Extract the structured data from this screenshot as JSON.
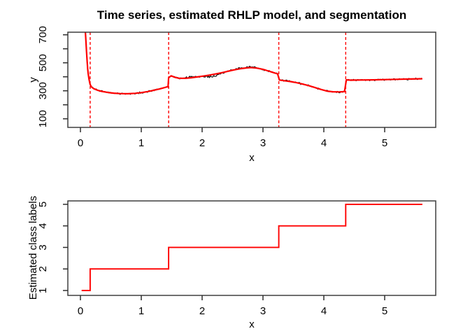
{
  "chart_data": [
    {
      "type": "line",
      "panel": "top",
      "title": "Time series, estimated RHLP model, and segmentation",
      "xlabel": "x",
      "ylabel": "y",
      "xticks": [
        0,
        1,
        2,
        3,
        4,
        5
      ],
      "yticks": [
        100,
        200,
        300,
        400,
        500,
        600,
        700
      ],
      "ytick_labels": [
        "100",
        "",
        "300",
        "",
        "500",
        "",
        "700"
      ],
      "xlim": [
        -0.2,
        5.84
      ],
      "ylim": [
        38,
        719
      ],
      "grid": false,
      "segment_boundaries": [
        0.16,
        1.45,
        3.26,
        4.36
      ],
      "boundary_style": "dashed",
      "series": [
        {
          "name": "observed-time-series",
          "color": "#000000",
          "style": "noisy-raw"
        },
        {
          "name": "estimated-rhlp-model",
          "color": "#FF0000",
          "style": "smooth",
          "points": [
            [
              0.05,
              950
            ],
            [
              0.09,
              660
            ],
            [
              0.1,
              580
            ],
            [
              0.11,
              510
            ],
            [
              0.12,
              455
            ],
            [
              0.13,
              415
            ],
            [
              0.14,
              385
            ],
            [
              0.15,
              362
            ],
            [
              0.16,
              345
            ],
            [
              0.18,
              328
            ],
            [
              0.22,
              315
            ],
            [
              0.28,
              304
            ],
            [
              0.35,
              296
            ],
            [
              0.45,
              288
            ],
            [
              0.55,
              283
            ],
            [
              0.65,
              280
            ],
            [
              0.78,
              279
            ],
            [
              0.9,
              282
            ],
            [
              1.0,
              287
            ],
            [
              1.1,
              294
            ],
            [
              1.2,
              303
            ],
            [
              1.3,
              313
            ],
            [
              1.4,
              325
            ],
            [
              1.44,
              330
            ],
            [
              1.45,
              393
            ],
            [
              1.49,
              407
            ],
            [
              1.55,
              397
            ],
            [
              1.62,
              389
            ],
            [
              1.72,
              389
            ],
            [
              1.82,
              393
            ],
            [
              1.92,
              399
            ],
            [
              2.02,
              405
            ],
            [
              2.12,
              412
            ],
            [
              2.22,
              420
            ],
            [
              2.32,
              429
            ],
            [
              2.42,
              439
            ],
            [
              2.52,
              449
            ],
            [
              2.62,
              457
            ],
            [
              2.72,
              463
            ],
            [
              2.8,
              466
            ],
            [
              2.9,
              462
            ],
            [
              3.0,
              453
            ],
            [
              3.1,
              440
            ],
            [
              3.18,
              429
            ],
            [
              3.24,
              421
            ],
            [
              3.27,
              377
            ],
            [
              3.35,
              372
            ],
            [
              3.45,
              366
            ],
            [
              3.55,
              358
            ],
            [
              3.65,
              348
            ],
            [
              3.75,
              337
            ],
            [
              3.85,
              324
            ],
            [
              3.95,
              310
            ],
            [
              4.05,
              298
            ],
            [
              4.15,
              293
            ],
            [
              4.25,
              292
            ],
            [
              4.34,
              294
            ],
            [
              4.37,
              378
            ],
            [
              4.45,
              376
            ],
            [
              4.6,
              377
            ],
            [
              4.8,
              378
            ],
            [
              5.0,
              380
            ],
            [
              5.2,
              382
            ],
            [
              5.4,
              384
            ],
            [
              5.62,
              386
            ]
          ]
        }
      ],
      "noise": {
        "seed": 987654321,
        "amplitude": 7,
        "step": 0.014,
        "deviation": [
          [
            1.7,
            4
          ],
          [
            1.85,
            6
          ],
          [
            2.0,
            0
          ],
          [
            2.08,
            -8
          ],
          [
            2.18,
            -16
          ],
          [
            2.28,
            -8
          ],
          [
            2.38,
            0
          ],
          [
            2.55,
            4
          ],
          [
            2.8,
            5
          ],
          [
            3.0,
            0
          ]
        ]
      }
    },
    {
      "type": "step",
      "panel": "bottom",
      "xlabel": "x",
      "ylabel": "Estimated class labels",
      "xticks": [
        0,
        1,
        2,
        3,
        4,
        5
      ],
      "yticks": [
        1,
        2,
        3,
        4,
        5
      ],
      "x_start": 0.02,
      "x_end": 5.62,
      "boundaries": [
        0.16,
        1.45,
        3.26,
        4.36
      ],
      "classes": [
        1,
        2,
        3,
        4,
        5
      ],
      "color": "#FF0000"
    }
  ],
  "colors": {
    "model_red": "#FF0000",
    "series_black": "#000000",
    "box_gray": "#3f3f3f",
    "tick_color": "#2e2e2e",
    "background": "#ffffff"
  }
}
